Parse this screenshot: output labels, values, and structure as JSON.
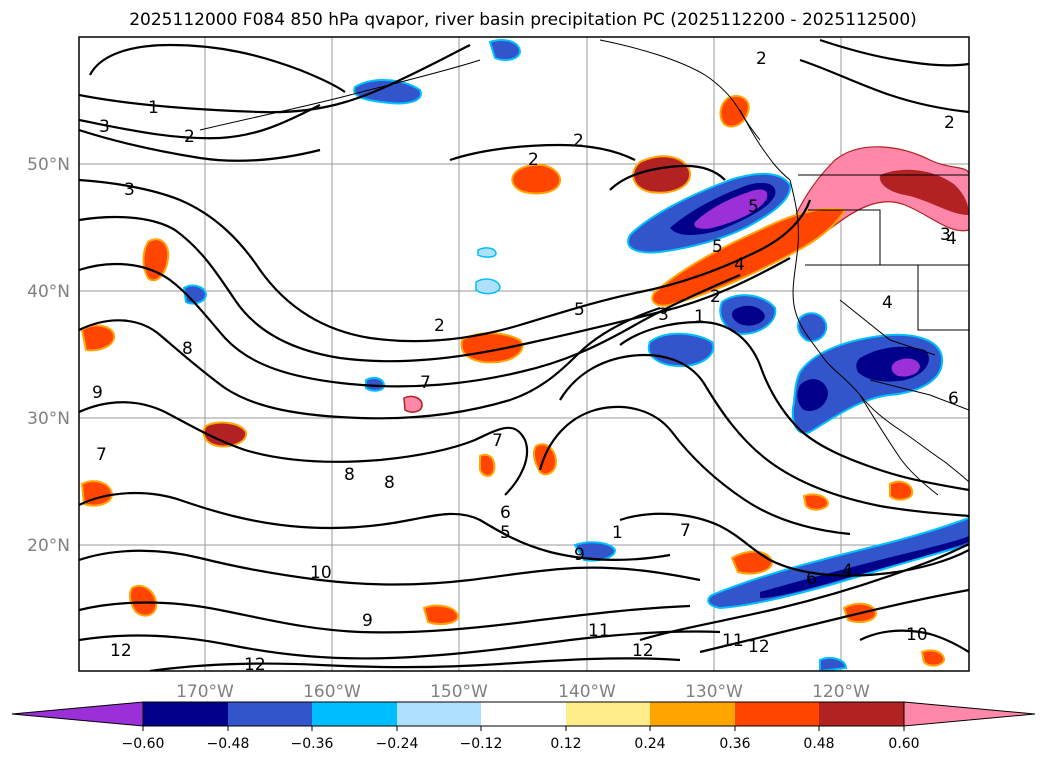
{
  "title": "2025112000 F084 850 hPa qvapor, river basin precipitation PC (2025112200 - 2025112500)",
  "map": {
    "lon_labels": [
      "170°W",
      "160°W",
      "150°W",
      "140°W",
      "130°W",
      "120°W"
    ],
    "lat_labels": [
      "50°N",
      "40°N",
      "30°N",
      "20°N"
    ],
    "gridlines": true,
    "contour_variable": "850 hPa qvapor",
    "contour_labels": [
      "1",
      "2",
      "2",
      "2",
      "3",
      "3",
      "2",
      "3",
      "4",
      "5",
      "5",
      "5",
      "2",
      "1",
      "2",
      "3",
      "4",
      "6",
      "7",
      "8",
      "9",
      "7",
      "7",
      "8",
      "8",
      "6",
      "5",
      "1",
      "7",
      "9",
      "6",
      "10",
      "9",
      "11",
      "12",
      "11",
      "12",
      "12",
      "10",
      "12",
      "2",
      "4",
      "4"
    ],
    "shading_variable": "river basin precipitation PC"
  },
  "colorbar": {
    "tick_labels": [
      "−0.60",
      "−0.48",
      "−0.36",
      "−0.24",
      "−0.12",
      "0.12",
      "0.24",
      "0.36",
      "0.48",
      "0.60"
    ],
    "colors": [
      "#9b30d9",
      "#00008b",
      "#3355cc",
      "#00bfff",
      "#b0e0ff",
      "#ffffff",
      "#ffec8b",
      "#ffa500",
      "#ff4500",
      "#b22222",
      "#ff88aa"
    ],
    "extend": "both"
  },
  "colors": {
    "contour": "#000000",
    "gridline": "#999999",
    "coastline": "#000000"
  }
}
